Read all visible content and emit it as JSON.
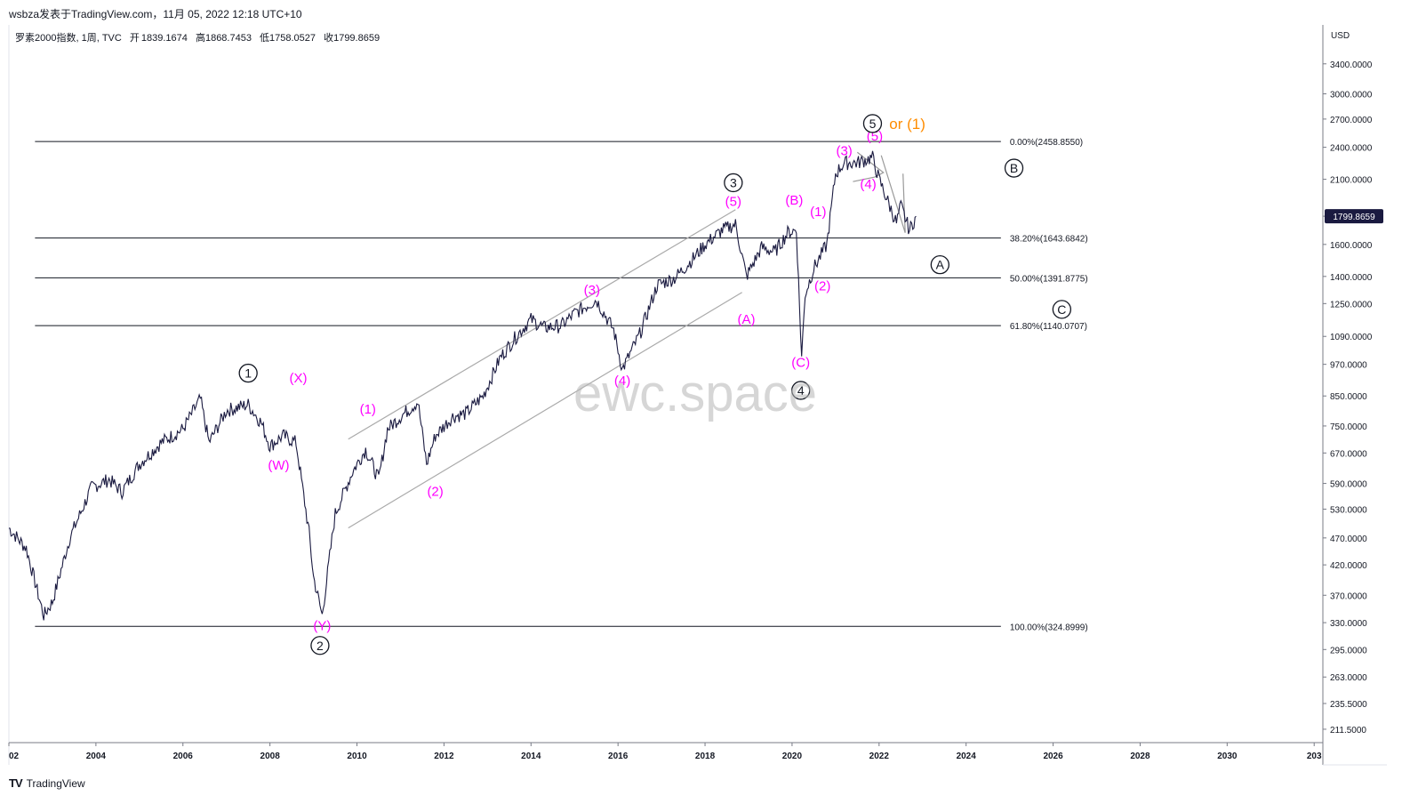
{
  "header": {
    "title": "wsbza发表于TradingView.com，11月 05, 2022 12:18 UTC+10"
  },
  "legend": {
    "symbol": "罗素2000指数, 1周, TVC",
    "open_label": "开",
    "open": "1839.1674",
    "high_label": "高",
    "high": "1868.7453",
    "low_label": "低",
    "low": "1758.0527",
    "close_label": "收",
    "close": "1799.8659"
  },
  "footer": {
    "brand": "TradingView"
  },
  "watermark": "ewc.space",
  "colors": {
    "price": "#1a1a40",
    "wave_minor": "#ff00ff",
    "wave_major": "#131722",
    "alt_count": "#ff8c00",
    "axis_text": "#131722",
    "price_tag_bg": "#1a1a40"
  },
  "chart_data": {
    "type": "line",
    "title": "罗素2000指数, 1周, TVC",
    "xlabel": "",
    "ylabel": "",
    "currency": "USD",
    "y_scale": "log",
    "ylim": [
      200,
      4000
    ],
    "xlim": [
      2002.0,
      2032.2
    ],
    "x_ticks": [
      "02",
      "2004",
      "2006",
      "2008",
      "2010",
      "2012",
      "2014",
      "2016",
      "2018",
      "2020",
      "2022",
      "2024",
      "2026",
      "2028",
      "2030",
      "203"
    ],
    "y_ticks": [
      "3400.0000",
      "3000.0000",
      "2700.0000",
      "2400.0000",
      "2100.0000",
      "1800.0000",
      "1600.0000",
      "1400.0000",
      "1250.0000",
      "1090.0000",
      "970.0000",
      "850.0000",
      "750.0000",
      "670.0000",
      "590.0000",
      "530.0000",
      "470.0000",
      "420.0000",
      "370.0000",
      "330.0000",
      "295.0000",
      "263.0000",
      "235.5000",
      "211.5000"
    ],
    "last_price": "1799.8659",
    "series": [
      {
        "x": [
          2002.0,
          2002.4,
          2002.8,
          2003.0,
          2003.4,
          2003.9,
          2004.3,
          2004.6,
          2005.0,
          2005.5,
          2006.0,
          2006.4,
          2006.6,
          2007.0,
          2007.5,
          2007.8,
          2008.0,
          2008.3,
          2008.6,
          2008.9,
          2009.0,
          2009.2,
          2009.5,
          2009.9,
          2010.2,
          2010.5,
          2010.7,
          2011.0,
          2011.4,
          2011.6,
          2011.8,
          2012.2,
          2012.5,
          2012.9,
          2013.3,
          2013.7,
          2014.0,
          2014.3,
          2014.7,
          2015.0,
          2015.5,
          2015.9,
          2016.1,
          2016.5,
          2016.9,
          2017.3,
          2017.7,
          2018.0,
          2018.4,
          2018.7,
          2018.95,
          2019.3,
          2019.6,
          2019.9,
          2020.1,
          2020.22,
          2020.3,
          2020.5,
          2020.8,
          2021.0,
          2021.2,
          2021.5,
          2021.85,
          2022.0,
          2022.4,
          2022.5,
          2022.7,
          2022.85
        ],
        "values": [
          490,
          450,
          340,
          360,
          470,
          580,
          600,
          570,
          640,
          700,
          740,
          840,
          700,
          800,
          820,
          760,
          690,
          720,
          700,
          480,
          400,
          340,
          520,
          620,
          680,
          600,
          740,
          780,
          830,
          640,
          720,
          780,
          790,
          850,
          1000,
          1100,
          1170,
          1130,
          1140,
          1200,
          1270,
          1120,
          950,
          1100,
          1350,
          1390,
          1500,
          1600,
          1700,
          1740,
          1400,
          1580,
          1550,
          1680,
          1700,
          1000,
          1300,
          1450,
          1600,
          2150,
          2250,
          2250,
          2300,
          2100,
          1750,
          1880,
          1700,
          1800
        ]
      }
    ],
    "fib_levels": [
      {
        "label": "0.00%(2458.8550)",
        "value": 2458.855
      },
      {
        "label": "38.20%(1643.6842)",
        "value": 1643.6842
      },
      {
        "label": "50.00%(1391.8775)",
        "value": 1391.8775
      },
      {
        "label": "61.80%(1140.0707)",
        "value": 1140.0707
      },
      {
        "label": "100.00%(324.8999)",
        "value": 324.8999
      }
    ],
    "wave_labels_minor": [
      {
        "text": "(W)",
        "x": 2008.2,
        "y": 625
      },
      {
        "text": "(X)",
        "x": 2008.65,
        "y": 900
      },
      {
        "text": "(Y)",
        "x": 2009.2,
        "y": 320
      },
      {
        "text": "(1)",
        "x": 2010.25,
        "y": 790
      },
      {
        "text": "(2)",
        "x": 2011.8,
        "y": 560
      },
      {
        "text": "(3)",
        "x": 2015.4,
        "y": 1300
      },
      {
        "text": "(4)",
        "x": 2016.1,
        "y": 890
      },
      {
        "text": "(5)",
        "x": 2018.65,
        "y": 1880
      },
      {
        "text": "(A)",
        "x": 2018.95,
        "y": 1150
      },
      {
        "text": "(B)",
        "x": 2020.05,
        "y": 1890
      },
      {
        "text": "(C)",
        "x": 2020.2,
        "y": 960
      },
      {
        "text": "(1)",
        "x": 2020.6,
        "y": 1800
      },
      {
        "text": "(2)",
        "x": 2020.7,
        "y": 1320
      },
      {
        "text": "(3)",
        "x": 2021.2,
        "y": 2320
      },
      {
        "text": "(4)",
        "x": 2021.75,
        "y": 2020
      },
      {
        "text": "(5)",
        "x": 2021.9,
        "y": 2470
      }
    ],
    "wave_labels_major": [
      {
        "text": "1",
        "x": 2007.5,
        "y": 935
      },
      {
        "text": "2",
        "x": 2009.15,
        "y": 300
      },
      {
        "text": "3",
        "x": 2018.65,
        "y": 2070
      },
      {
        "text": "4",
        "x": 2020.2,
        "y": 870
      },
      {
        "text": "5",
        "x": 2021.85,
        "y": 2650
      }
    ],
    "alt_label": {
      "text": "or (1)",
      "x": 2022.65,
      "y": 2650
    },
    "projection_labels": [
      {
        "text": "A",
        "x": 2023.4,
        "y": 1470
      },
      {
        "text": "B",
        "x": 2025.1,
        "y": 2200
      },
      {
        "text": "C",
        "x": 2026.2,
        "y": 1220
      }
    ]
  }
}
